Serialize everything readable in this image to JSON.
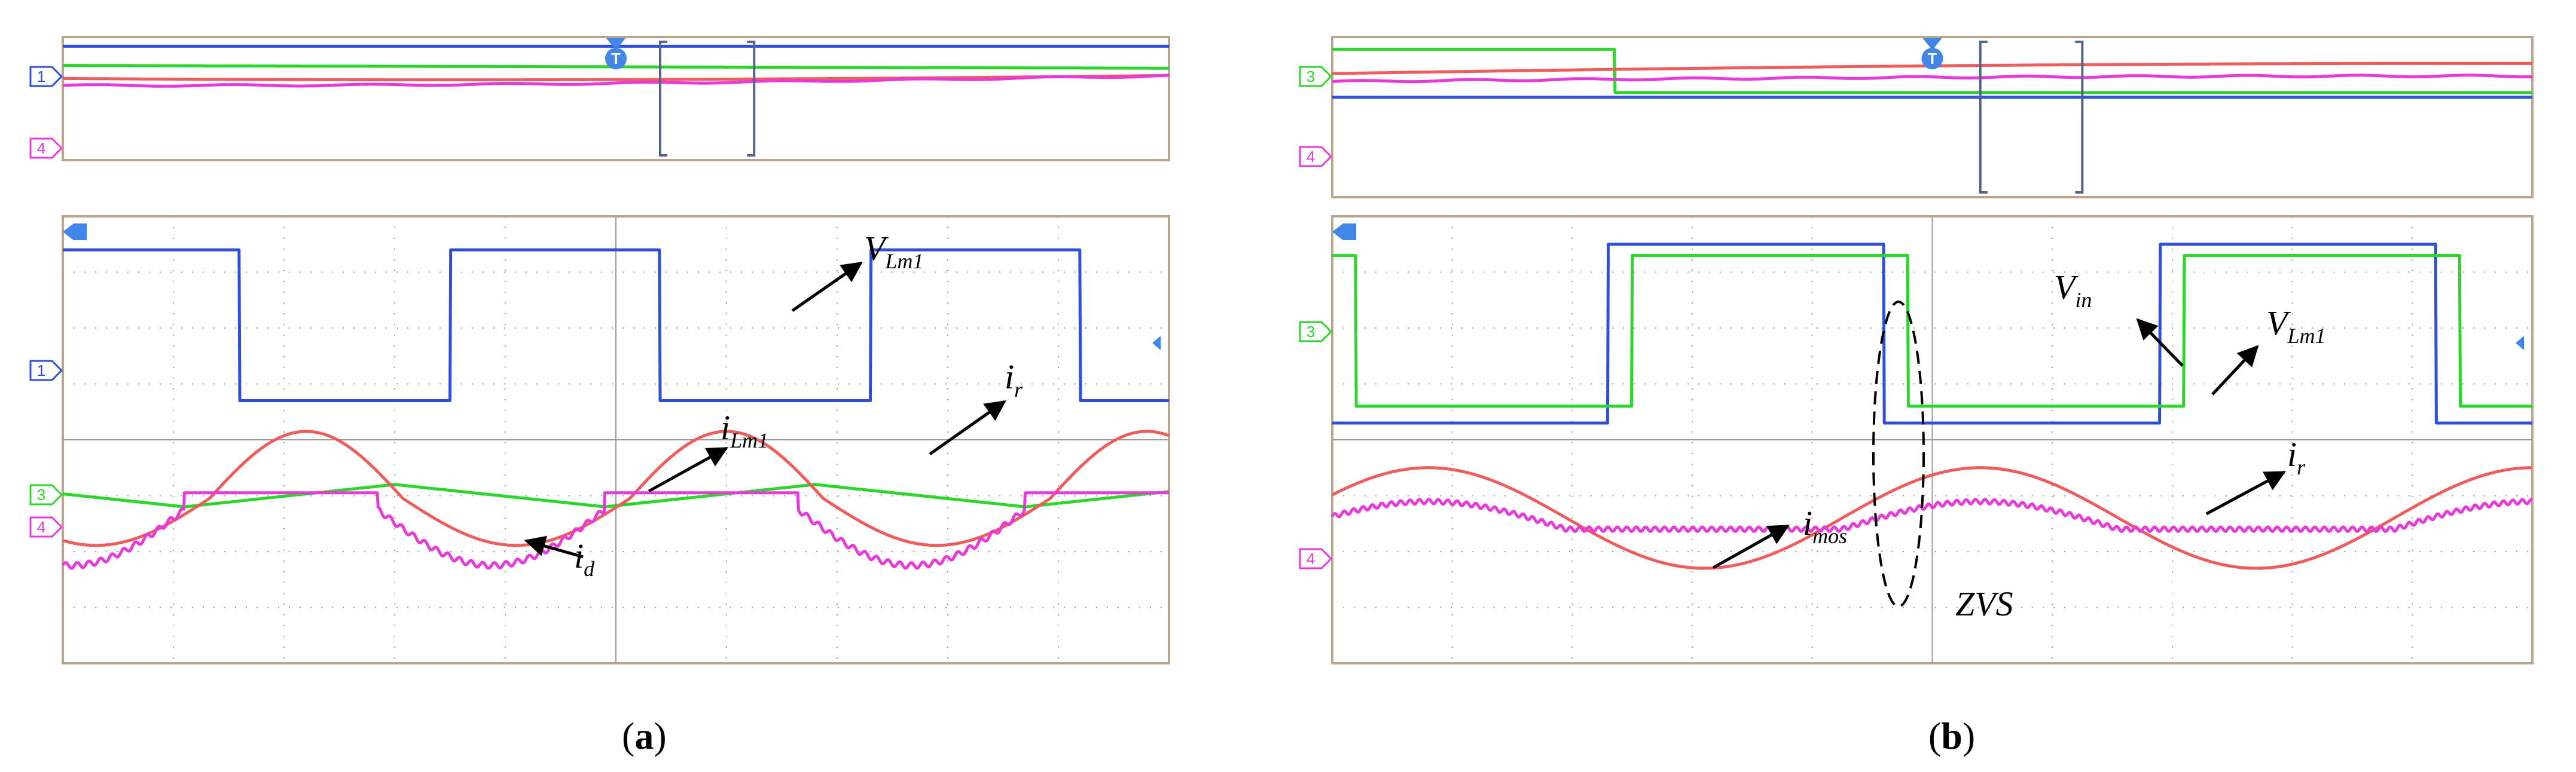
{
  "figure": {
    "colors": {
      "frame": "#b9a48e",
      "grid": "#9a9a9a",
      "ch1": "#2f4fd9",
      "ch3": "#2bd62b",
      "ch4": "#e83ad8",
      "ir": "#ee5c5c",
      "trigger": "#3f86e8",
      "window": "#56628a"
    },
    "panels": [
      {
        "id": "a",
        "caption": {
          "open": "(",
          "letter": "a",
          "close": ")"
        },
        "overview_markers": [
          "1",
          "4"
        ],
        "main_markers": [
          "1",
          "3",
          "4"
        ],
        "annotations": [
          {
            "key": "vlm1",
            "base": "V",
            "sub": "Lm1"
          },
          {
            "key": "ilm1",
            "base": "i",
            "sub": "Lm1"
          },
          {
            "key": "ir",
            "base": "i",
            "sub": "r"
          },
          {
            "key": "id",
            "base": "i",
            "sub": "d"
          }
        ],
        "chart_data": {
          "type": "line",
          "title": "",
          "xlabel": "",
          "ylabel": "",
          "grid": true,
          "x_divisions": 10,
          "y_divisions": 8,
          "x_range": [
            0,
            10
          ],
          "y_range": [
            -4,
            4
          ],
          "series": [
            {
              "name": "V_Lm1",
              "channel": "1",
              "color_key": "ch1",
              "shape": "square",
              "high": 3.4,
              "low": 0.7,
              "period": 3.8,
              "first_fall": 1.6,
              "duty": 0.5
            },
            {
              "name": "i_Lm1",
              "channel": "3",
              "color_key": "ch3",
              "shape": "triangle",
              "center": -1.0,
              "amp": 0.2,
              "period": 3.8,
              "first_peak": 3.0
            },
            {
              "name": "i_r",
              "channel": "",
              "color_key": "ir",
              "shape": "resonant",
              "center": -1.05,
              "amp": 1.2,
              "period": 3.8,
              "first_peak": 2.2
            },
            {
              "name": "i_d",
              "channel": "4",
              "color_key": "ch4",
              "shape": "diode",
              "center": -1.25,
              "amp": 1.0,
              "period": 3.8,
              "first_zero": 1.1
            }
          ]
        }
      },
      {
        "id": "b",
        "caption": {
          "open": "(",
          "letter": "b",
          "close": ")"
        },
        "overview_markers": [
          "3",
          "4"
        ],
        "main_markers": [
          "3",
          "4"
        ],
        "annotations": [
          {
            "key": "vin",
            "base": "V",
            "sub": "in"
          },
          {
            "key": "vlm1",
            "base": "V",
            "sub": "Lm1"
          },
          {
            "key": "ir",
            "base": "i",
            "sub": "r"
          },
          {
            "key": "imos",
            "base": "i",
            "sub": "mos"
          },
          {
            "key": "zvs",
            "base": "ZVS",
            "sub": ""
          }
        ],
        "chart_data": {
          "type": "line",
          "title": "",
          "xlabel": "",
          "ylabel": "",
          "grid": true,
          "x_divisions": 10,
          "y_divisions": 8,
          "x_range": [
            0,
            10
          ],
          "y_range": [
            -4,
            4
          ],
          "series": [
            {
              "name": "V_in",
              "channel": "",
              "color_key": "ch1",
              "shape": "square",
              "high": 3.5,
              "low": 0.3,
              "period": 4.6,
              "first_fall": 4.6,
              "duty": 0.5
            },
            {
              "name": "V_Lm1",
              "channel": "3",
              "color_key": "ch3",
              "shape": "square",
              "high": 3.3,
              "low": 0.6,
              "period": 4.6,
              "first_fall": 4.8,
              "duty": 0.5
            },
            {
              "name": "i_r",
              "channel": "",
              "color_key": "ir",
              "shape": "resonant_b",
              "center": -1.4,
              "amp": 0.9,
              "period": 4.6,
              "first_peak": 0.8
            },
            {
              "name": "i_mos",
              "channel": "4",
              "color_key": "ch4",
              "shape": "mos",
              "center": -1.6,
              "amp": 0.9,
              "period": 4.6,
              "first_peak": 0.8
            }
          ]
        }
      }
    ]
  }
}
